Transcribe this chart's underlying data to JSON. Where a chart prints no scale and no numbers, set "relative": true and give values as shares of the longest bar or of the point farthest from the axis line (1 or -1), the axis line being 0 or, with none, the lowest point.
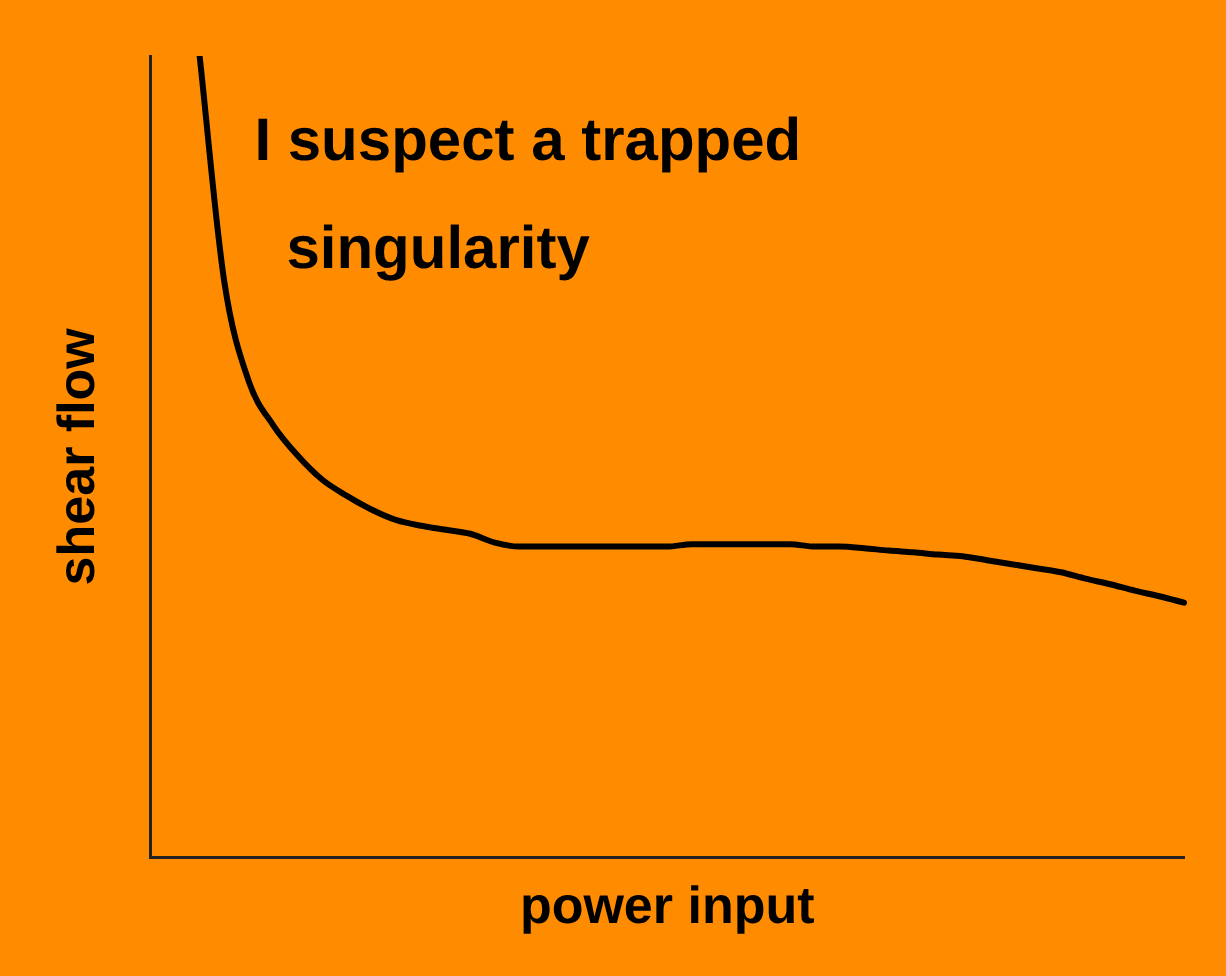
{
  "chart_data": {
    "type": "line",
    "relative": true,
    "xlabel": "power input",
    "ylabel": "shear flow",
    "annotations": [
      "I suspect a trapped singularity"
    ],
    "categories": [
      null,
      null,
      null,
      null,
      null,
      null,
      null,
      null,
      null,
      null,
      null,
      null,
      null,
      null,
      null,
      null,
      null,
      null,
      null,
      null,
      null,
      null,
      null,
      null,
      null,
      null,
      null,
      null,
      null,
      null,
      null,
      null,
      null,
      null,
      null,
      null,
      null,
      null,
      null,
      null,
      null,
      null,
      null
    ],
    "series": [
      {
        "color": "#000000",
        "values": [
          null,
          null,
          1.0,
          0.719,
          0.594,
          0.539,
          0.501,
          0.471,
          0.451,
          0.434,
          0.421,
          0.414,
          0.409,
          0.404,
          0.393,
          0.388,
          0.388,
          0.388,
          0.388,
          0.388,
          0.388,
          0.388,
          0.391,
          0.391,
          0.391,
          0.391,
          0.391,
          0.388,
          0.388,
          0.386,
          0.383,
          0.381,
          0.378,
          0.376,
          0.371,
          0.366,
          0.361,
          0.356,
          0.348,
          0.341,
          0.333,
          0.326,
          0.318
        ]
      }
    ],
    "grid": false,
    "legend": false,
    "marker": "none",
    "line_style": "solid"
  }
}
